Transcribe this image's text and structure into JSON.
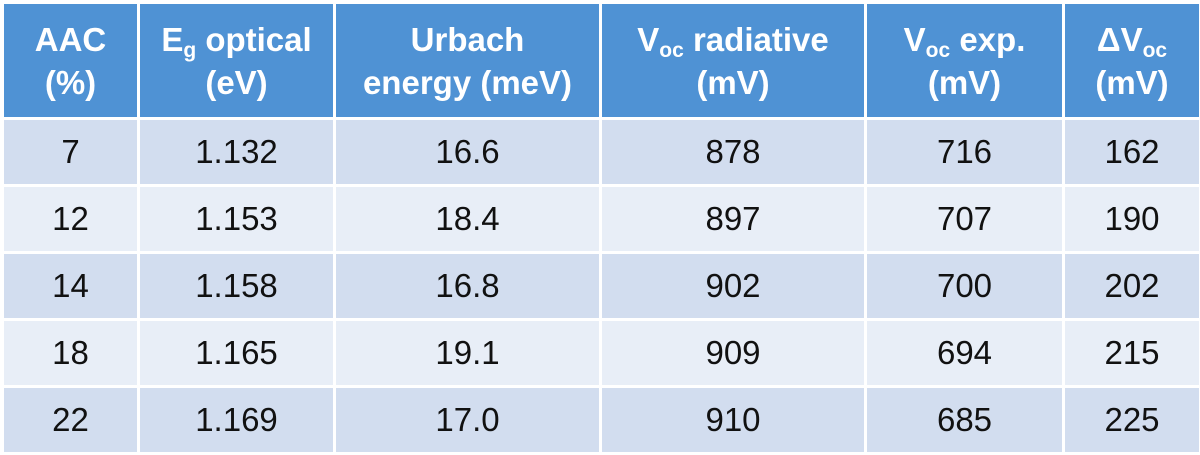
{
  "table": {
    "headers": [
      {
        "line1": "AAC",
        "line2": "(%)"
      },
      {
        "line1_main": "E",
        "line1_sub": "g",
        "line1_rest": " optical",
        "line2": "(eV)"
      },
      {
        "line1": "Urbach",
        "line2": "energy (meV)"
      },
      {
        "line1_main": "V",
        "line1_sub": "oc",
        "line1_rest": " radiative",
        "line2": "(mV)"
      },
      {
        "line1_main": "V",
        "line1_sub": "oc",
        "line1_rest": " exp.",
        "line2": "(mV)"
      },
      {
        "line1_main": "ΔV",
        "line1_sub": "oc",
        "line1_rest": "",
        "line2": "(mV)"
      }
    ],
    "rows": [
      [
        "7",
        "1.132",
        "16.6",
        "878",
        "716",
        "162"
      ],
      [
        "12",
        "1.153",
        "18.4",
        "897",
        "707",
        "190"
      ],
      [
        "14",
        "1.158",
        "16.8",
        "902",
        "700",
        "202"
      ],
      [
        "18",
        "1.165",
        "19.1",
        "909",
        "694",
        "215"
      ],
      [
        "22",
        "1.169",
        "17.0",
        "910",
        "685",
        "225"
      ]
    ]
  },
  "colors": {
    "header_bg": "#4f92d4",
    "row_odd_bg": "#d2ddef",
    "row_even_bg": "#e8eef7",
    "border": "#ffffff"
  }
}
